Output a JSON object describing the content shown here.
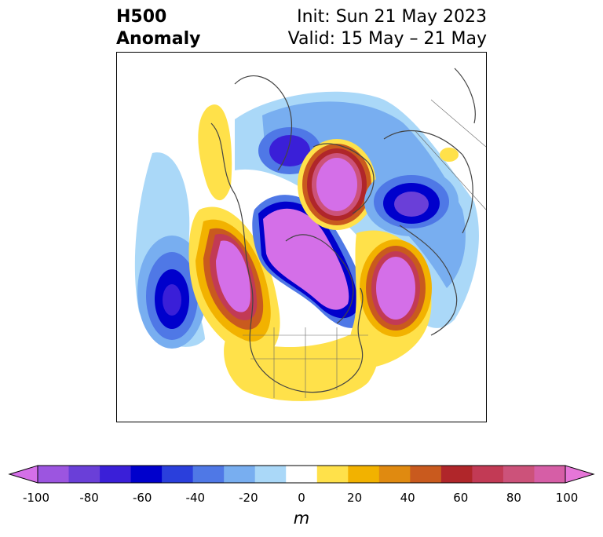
{
  "header": {
    "title_line1": "H500",
    "title_line2": "Anomaly",
    "init_text": "Init: Sun 21 May 2023",
    "valid_text": "Valid: 15 May – 21 May"
  },
  "colorbar": {
    "units": "m",
    "ticks": [
      "-100",
      "-80",
      "-60",
      "-40",
      "-20",
      "0",
      "20",
      "40",
      "60",
      "80",
      "100"
    ],
    "colors": [
      "#d46fe8",
      "#9c55e0",
      "#6a3fd8",
      "#3a1fd8",
      "#0000cc",
      "#2a3fdc",
      "#4f78e6",
      "#78aef0",
      "#aad8f8",
      "#ffffff",
      "#ffe14a",
      "#f2b200",
      "#e08a10",
      "#c95a1e",
      "#b0262a",
      "#c23a55",
      "#cc527a",
      "#d65ea6",
      "#e676d8"
    ]
  },
  "map": {
    "projection": "polar-stereographic",
    "region": "Northern Hemisphere"
  }
}
